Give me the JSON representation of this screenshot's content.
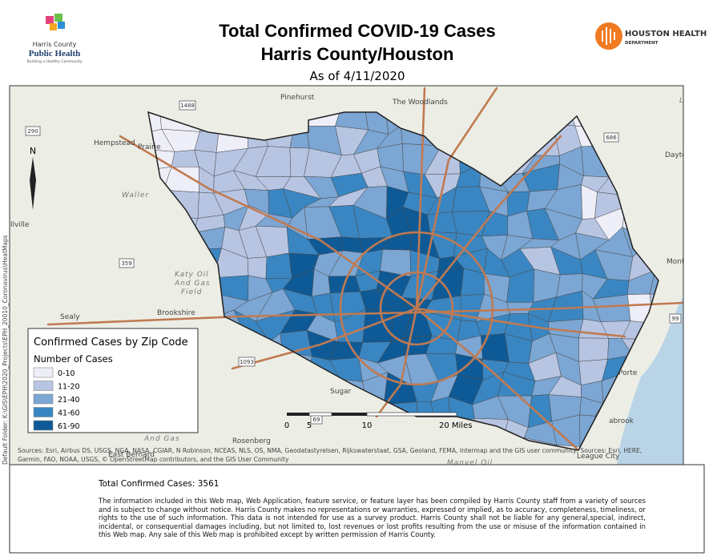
{
  "header": {
    "title_line1": "Total Confirmed COVID-19 Cases",
    "title_line2": "Harris County/Houston",
    "date": "As of 4/11/2020",
    "left_logo": {
      "line1": "Harris County",
      "line2": "Public Health",
      "tagline": "Building a Healthy Community"
    },
    "right_logo": {
      "line1": "HOUSTON HEALTH",
      "line2": "DEPARTMENT"
    }
  },
  "map": {
    "places": [
      "Pinehurst",
      "The Woodlands",
      "Hempstead",
      "Prairie",
      "Waller",
      "Katy Oil",
      "And Gas",
      "Field",
      "Sealy",
      "Brookshire",
      "Dayton",
      "Mont Belvie",
      "Rosenberg",
      "East Bernard",
      "Manvel Oil",
      "League City",
      "llville",
      "Liber",
      "Porte",
      "abrook",
      "Sugar",
      "And Gas"
    ],
    "shields": [
      "1488",
      "290",
      "686",
      "359",
      "99",
      "1093",
      "69"
    ],
    "north": "N",
    "legend": {
      "title": "Confirmed Cases by Zip Code",
      "subtitle": "Number of Cases",
      "classes": [
        {
          "label": "0-10",
          "color": "#eeeef8"
        },
        {
          "label": "11-20",
          "color": "#b7c5e3"
        },
        {
          "label": "21-40",
          "color": "#7ca6d3"
        },
        {
          "label": "41-60",
          "color": "#3986c2"
        },
        {
          "label": "61-90",
          "color": "#0e5a96"
        }
      ]
    },
    "scale": [
      "0",
      "5",
      "10",
      "20 Miles"
    ],
    "sources": [
      "Sources: Esri, Airbus DS, USGS, NGA, NASA, CGIAR, N Robinson, NCEAS, NLS, OS, NMA, Geodatastyrelsen, Rijkswaterstaat, GSA, Geoland, FEMA, Intermap and the GIS user community, Sources: Esri, HERE,",
      "Garmin, FAO, NOAA, USGS, © OpenStreetMap contributors, and the GIS User Community"
    ],
    "folder": "Default Folder: K:\\GIS\\EPH\\2020_Projects\\EPH_20010_Coronavirus\\HeatMaps"
  },
  "footer": {
    "total": "Total Confirmed Cases: 3561",
    "disclaimer": "The information included in this Web map, Web Application, feature service, or feature layer has been compiled by Harris County staff from a variety of sources and is subject to change without notice. Harris County makes no representations or warranties, expressed or implied, as to accuracy, completeness, timeliness, or rights to the use of such information. This data is not intended for use as a survey product. Harris County shall not be liable for any general,special, indirect, incidental, or consequential damages including, but not limited to, lost revenues or lost profits resulting from the use or misuse of the information contained in this Web map. Any sale of this Web map is prohibited except by written permission of Harris County."
  }
}
